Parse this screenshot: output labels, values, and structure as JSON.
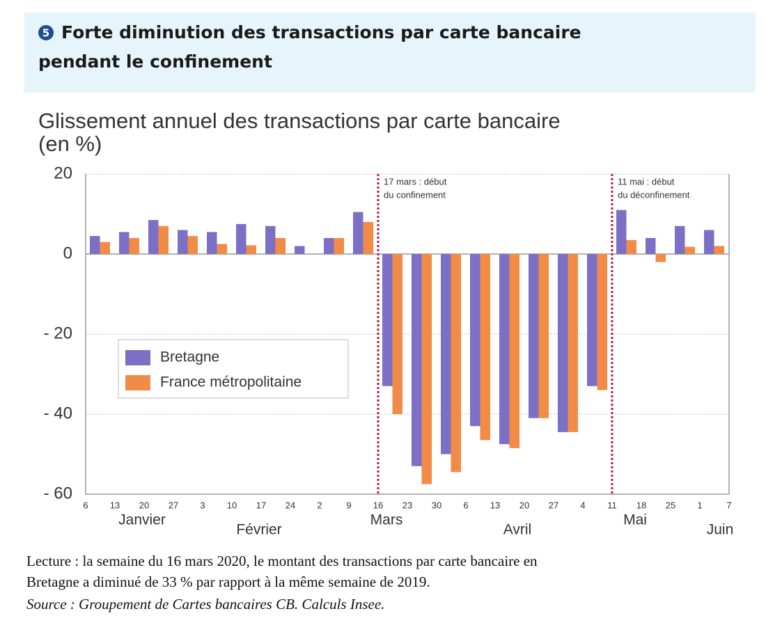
{
  "chart_data": {
    "type": "bar",
    "number": "5",
    "title": [
      "Forte diminution des transactions par carte bancaire",
      "pendant le confinement"
    ],
    "subtitle": [
      "Glissement annuel des transactions par carte bancaire",
      "(en %)"
    ],
    "categories": [
      "6",
      "13",
      "20",
      "27",
      "3",
      "10",
      "17",
      "24",
      "2",
      "9",
      "16",
      "23",
      "30",
      "6",
      "13",
      "20",
      "27",
      "4",
      "11",
      "18",
      "25",
      "1",
      "7"
    ],
    "months": [
      "Janvier",
      "Février",
      "Mars",
      "Avril",
      "Mai",
      "Juin"
    ],
    "series": [
      {
        "name": "Bretagne",
        "color": "#7b70c6",
        "values": [
          4.5,
          5.5,
          8.5,
          6,
          5.5,
          7.5,
          7,
          2,
          4,
          10.5,
          -33,
          -53,
          -50,
          -43,
          -47.5,
          -41,
          -44.5,
          -33,
          11,
          4,
          7,
          6,
          null
        ]
      },
      {
        "name": "France métropolitaine",
        "color": "#f28b46",
        "values": [
          3,
          4,
          7,
          4.5,
          2.5,
          2.2,
          4,
          0,
          4,
          8,
          -40,
          -57.5,
          -54.5,
          -46.5,
          -48.5,
          -41,
          -44.5,
          -34,
          3.5,
          -2,
          1.8,
          2,
          null
        ]
      }
    ],
    "ylim": [
      -60,
      20
    ],
    "yticks": [
      {
        "value": -60,
        "label": "- 60"
      },
      {
        "value": -40,
        "label": "- 40"
      },
      {
        "value": -20,
        "label": "- 20"
      },
      0,
      20
    ],
    "grid": true,
    "annotations": [
      {
        "at": "16",
        "lines": [
          "17 mars : début",
          "du confinement"
        ]
      },
      {
        "at": "11",
        "lines": [
          "11 mai : début",
          "du déconfinement"
        ]
      }
    ],
    "footer": {
      "reading": [
        "Lecture : la semaine du 16 mars 2020, le montant des transactions par carte bancaire en",
        "Bretagne a diminué de 33 % par rapport à la même semaine de 2019."
      ],
      "source": "Source : Groupement de Cartes bancaires CB. Calculs Insee."
    }
  }
}
